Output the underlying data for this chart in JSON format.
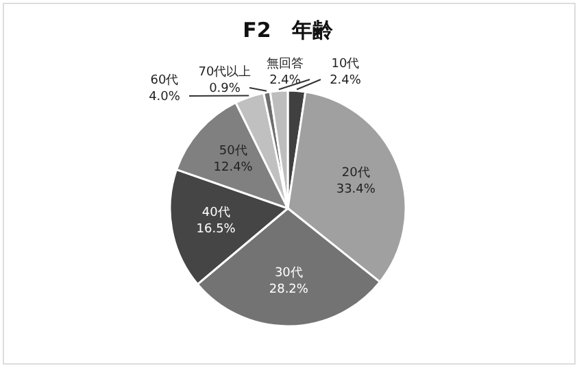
{
  "chart_data": {
    "type": "pie",
    "title": "F2　年齢",
    "categories": [
      "10代",
      "20代",
      "30代",
      "40代",
      "50代",
      "60代",
      "70代以上",
      "無回答"
    ],
    "values": [
      2.4,
      33.4,
      28.2,
      16.5,
      12.4,
      4.0,
      0.9,
      2.4
    ],
    "value_labels": [
      "2.4%",
      "33.4%",
      "28.2%",
      "16.5%",
      "12.4%",
      "4.0%",
      "0.9%",
      "2.4%"
    ],
    "colors": [
      "#404040",
      "#a0a0a0",
      "#737373",
      "#454545",
      "#808080",
      "#c0c0c0",
      "#6e6e6e",
      "#bdbdbd"
    ]
  }
}
